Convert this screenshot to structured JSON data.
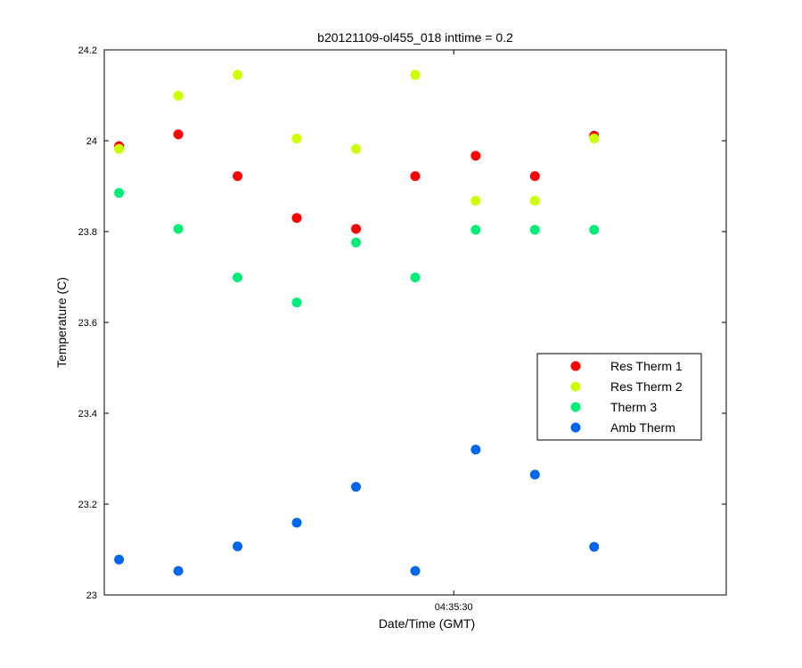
{
  "chart_data": {
    "type": "scatter",
    "title": "b20121109-ol455_018 inttime = 0.2",
    "xlabel": "Date/Time (GMT)",
    "ylabel": "Temperature (C)",
    "ylim": [
      23,
      24.2
    ],
    "xlim": [
      0,
      10.5
    ],
    "yticks": [
      23,
      23.2,
      23.4,
      23.6,
      23.8,
      24,
      24.2
    ],
    "ytick_labels": [
      "23",
      "23.2",
      "23.4",
      "23.6",
      "23.8",
      "24",
      "24.2"
    ],
    "xticks": [
      5.9
    ],
    "xtick_labels": [
      "04:35:30"
    ],
    "grid": false,
    "legend_position": "right",
    "series": [
      {
        "name": "Res Therm 1",
        "color": "#ff0000",
        "x": [
          0.25,
          1.25,
          2.25,
          3.25,
          4.25,
          5.25,
          6.27,
          7.27,
          8.27
        ],
        "y": [
          23.988,
          24.014,
          23.922,
          23.83,
          23.806,
          23.922,
          23.967,
          23.922,
          24.011
        ]
      },
      {
        "name": "Res Therm 2",
        "color": "#ccff00",
        "x": [
          0.25,
          1.25,
          2.25,
          3.25,
          4.25,
          5.25,
          6.27,
          7.27,
          8.27
        ],
        "y": [
          23.982,
          24.099,
          24.145,
          24.005,
          23.982,
          24.145,
          23.868,
          23.868,
          24.005
        ]
      },
      {
        "name": "Therm 3",
        "color": "#00ee77",
        "x": [
          0.25,
          1.25,
          2.25,
          3.25,
          4.25,
          5.25,
          6.27,
          7.27,
          8.27
        ],
        "y": [
          23.885,
          23.806,
          23.699,
          23.644,
          23.776,
          23.699,
          23.804,
          23.804,
          23.804
        ]
      },
      {
        "name": "Amb Therm",
        "color": "#0066ee",
        "x": [
          0.25,
          1.25,
          2.25,
          3.25,
          4.25,
          5.25,
          6.27,
          7.27,
          8.27
        ],
        "y": [
          23.078,
          23.053,
          23.107,
          23.159,
          23.238,
          23.053,
          23.32,
          23.265,
          23.106
        ]
      }
    ]
  }
}
